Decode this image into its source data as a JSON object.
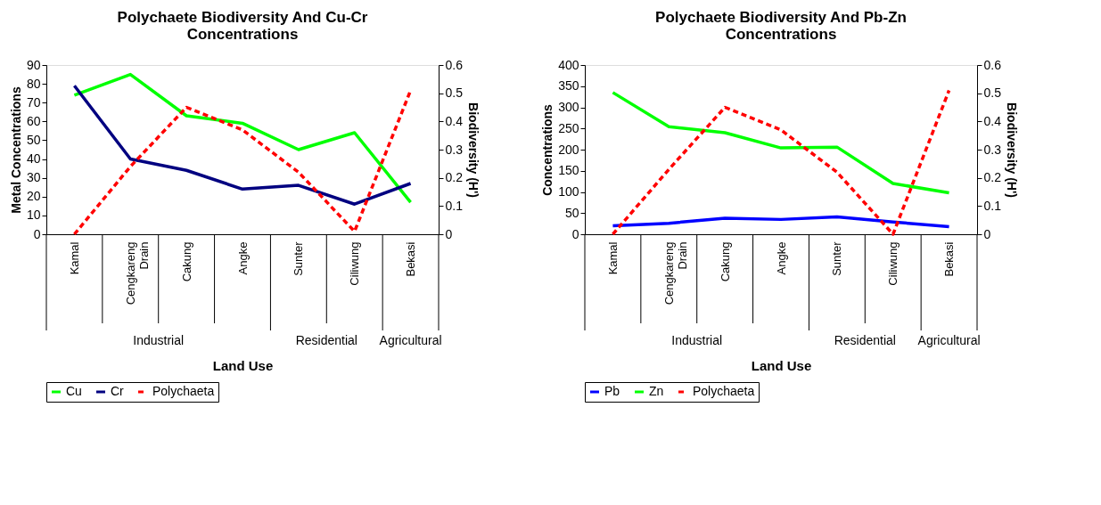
{
  "chart_data": [
    {
      "type": "line",
      "title": "Polychaete Biodiversity And Cu-Cr Concentrations",
      "xlabel": "Land Use",
      "ylabel": "Metal Concentrations",
      "y2label": "Biodiversity (H')",
      "categories": [
        "Kamal",
        "Cengkareng Drain",
        "Cakung",
        "Angke",
        "Sunter",
        "Ciliwung",
        "Bekasi"
      ],
      "series": [
        {
          "name": "Cu",
          "color": "#00ff00",
          "line_style": "solid",
          "values": [
            74,
            85,
            63,
            59,
            45,
            54,
            17
          ]
        },
        {
          "name": "Cr",
          "color": "#000080",
          "line_style": "solid",
          "values": [
            79,
            40,
            34,
            24,
            26,
            16,
            27
          ]
        },
        {
          "name": "Polychaeta",
          "color": "#ff0000",
          "line_style": "dashed",
          "axis": "y2",
          "values": [
            0,
            0.24,
            0.45,
            0.37,
            0.22,
            0.01,
            0.51
          ]
        }
      ],
      "ylim": [
        0,
        90
      ],
      "yticks": [
        0,
        10,
        20,
        30,
        40,
        50,
        60,
        70,
        80,
        90
      ],
      "y2lim": [
        0,
        0.6
      ],
      "y2ticks": [
        0,
        0.1,
        0.2,
        0.3,
        0.4,
        0.5,
        0.6
      ],
      "annotations": [
        "Industrial",
        "Residential",
        "Agricultural"
      ],
      "legend": "bottom",
      "grid": false
    },
    {
      "type": "line",
      "title": "Polychaete Biodiversity And Pb-Zn Concentrations",
      "xlabel": "Land Use",
      "ylabel": "Concentrations",
      "y2label": "Biodiversity (H')",
      "categories": [
        "Kamal",
        "Cengkareng Drain",
        "Cakung",
        "Angke",
        "Sunter",
        "Ciliwung",
        "Bekasi"
      ],
      "series": [
        {
          "name": "Pb",
          "color": "#0000ff",
          "line_style": "solid",
          "values": [
            20,
            26,
            38,
            35,
            41,
            29,
            18
          ]
        },
        {
          "name": "Zn",
          "color": "#00ff00",
          "line_style": "solid",
          "values": [
            335,
            254,
            240,
            204,
            206,
            120,
            98
          ]
        },
        {
          "name": "Polychaeta",
          "color": "#ff0000",
          "line_style": "dashed",
          "axis": "y2",
          "values": [
            0,
            0.23,
            0.45,
            0.37,
            0.22,
            0,
            0.51
          ]
        }
      ],
      "ylim": [
        0,
        400
      ],
      "yticks": [
        0,
        50,
        100,
        150,
        200,
        250,
        300,
        350,
        400
      ],
      "y2lim": [
        0,
        0.6
      ],
      "y2ticks": [
        0,
        0.1,
        0.2,
        0.3,
        0.4,
        0.5,
        0.6
      ],
      "annotations": [
        "Industrial",
        "Residential",
        "Agricultural"
      ],
      "legend": "bottom",
      "grid": false
    }
  ]
}
